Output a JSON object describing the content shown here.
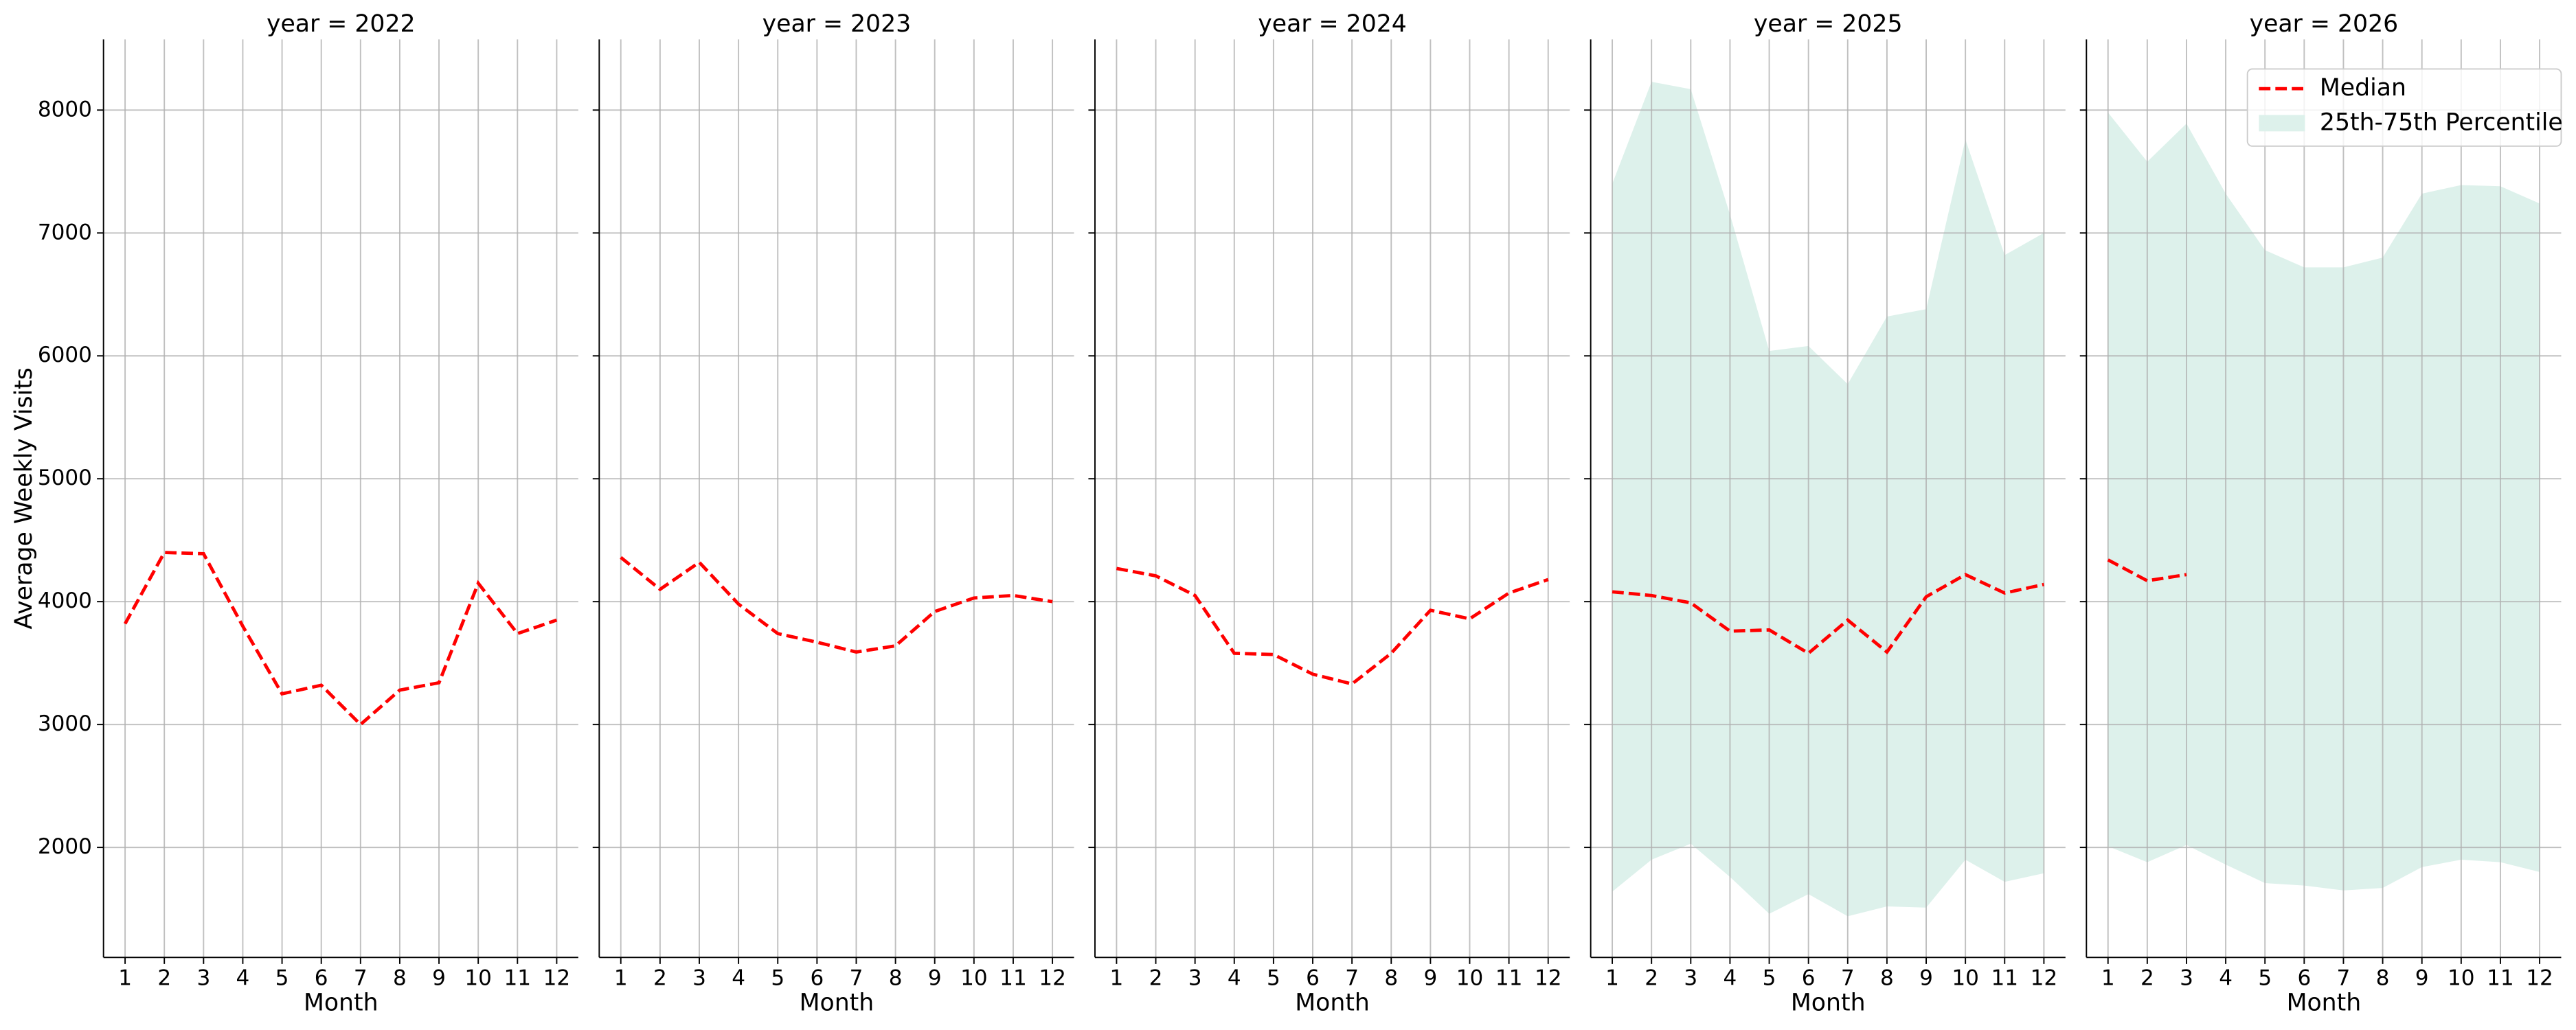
{
  "chart_data": {
    "type": "line",
    "x_label": "Month",
    "y_label": "Average Weekly Visits",
    "x": [
      1,
      2,
      3,
      4,
      5,
      6,
      7,
      8,
      9,
      10,
      11,
      12
    ],
    "xlim": [
      0.45,
      12.55
    ],
    "xticks": [
      1,
      2,
      3,
      4,
      5,
      6,
      7,
      8,
      9,
      10,
      11,
      12
    ],
    "ylim": [
      1105,
      8575
    ],
    "yticks": [
      2000,
      3000,
      4000,
      5000,
      6000,
      7000,
      8000
    ],
    "grid": true,
    "legend": "upper right",
    "panels": [
      {
        "title": "year = 2022",
        "series": [
          {
            "color": "#ff0000",
            "values": [
              3820,
              4400,
              4390,
              3800,
              3250,
              3320,
              3000,
              3280,
              3340,
              4150,
              3740,
              3850
            ]
          }
        ]
      },
      {
        "title": "year = 2023",
        "series": [
          {
            "color": "#ff0000",
            "values": [
              4360,
              4100,
              4320,
              3980,
              3740,
              3670,
              3590,
              3640,
              3920,
              4030,
              4050,
              4000
            ]
          }
        ]
      },
      {
        "title": "year = 2024",
        "series": [
          {
            "color": "#ff0000",
            "values": [
              4270,
              4210,
              4050,
              3580,
              3570,
              3410,
              3330,
              3580,
              3930,
              3860,
              4070,
              4180
            ]
          }
        ]
      },
      {
        "title": "year = 2025",
        "series": [
          {
            "color": "#ff0000",
            "values": [
              4080,
              4050,
              3990,
              3760,
              3770,
              3580,
              3850,
              3590,
              4040,
              4220,
              4070,
              4140
            ]
          },
          {
            "color": "#ddf1eb",
            "low": [
              1640,
              1900,
              2030,
              1760,
              1460,
              1620,
              1440,
              1520,
              1510,
              1900,
              1720,
              1790
            ],
            "high": [
              7400,
              8230,
              8170,
              7150,
              6040,
              6080,
              5770,
              6320,
              6380,
              7760,
              6820,
              7000
            ]
          }
        ]
      },
      {
        "title": "year = 2026",
        "series": [
          {
            "name": "Median",
            "color": "#ff0000",
            "values": [
              4340,
              4170,
              4220,
              null,
              null,
              null,
              null,
              null,
              null,
              null,
              null,
              null
            ]
          },
          {
            "name": "25th-75th Percentile",
            "color": "#ddf1eb",
            "low": [
              2010,
              1880,
              2020,
              1860,
              1710,
              1690,
              1650,
              1670,
              1840,
              1900,
              1880,
              1800
            ],
            "high": [
              7980,
              7580,
              7890,
              7320,
              6860,
              6720,
              6720,
              6800,
              7320,
              7390,
              7380,
              7240
            ]
          }
        ]
      }
    ]
  }
}
